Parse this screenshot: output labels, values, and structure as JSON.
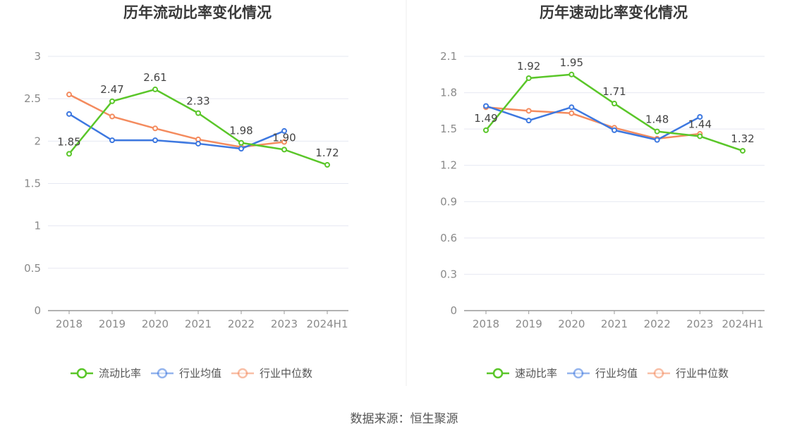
{
  "chart_data": [
    {
      "type": "line",
      "title": "历年流动比率变化情况",
      "categories": [
        "2018",
        "2019",
        "2020",
        "2021",
        "2022",
        "2023",
        "2024H1"
      ],
      "ylim": [
        0,
        3
      ],
      "yticks": [
        "0",
        "0.5",
        "1",
        "1.5",
        "2",
        "2.5",
        "3"
      ],
      "ytick_values": [
        0,
        0.5,
        1,
        1.5,
        2,
        2.5,
        3
      ],
      "grid": true,
      "legend": "bottom",
      "series": [
        {
          "name": "流动比率",
          "color": "#5ac629",
          "values": [
            1.85,
            2.47,
            2.61,
            2.33,
            1.98,
            1.9,
            1.72
          ],
          "labels": [
            "1.85",
            "2.47",
            "2.61",
            "2.33",
            "1.98",
            "1.90",
            "1.72"
          ]
        },
        {
          "name": "行业均值",
          "color": "#3d78e0",
          "values": [
            2.32,
            2.01,
            2.01,
            1.97,
            1.91,
            2.12,
            null
          ]
        },
        {
          "name": "行业中位数",
          "color": "#f48b5e",
          "values": [
            2.55,
            2.29,
            2.15,
            2.02,
            1.93,
            1.99,
            null
          ]
        }
      ]
    },
    {
      "type": "line",
      "title": "历年速动比率变化情况",
      "categories": [
        "2018",
        "2019",
        "2020",
        "2021",
        "2022",
        "2023",
        "2024H1"
      ],
      "ylim": [
        0,
        2.1
      ],
      "yticks": [
        "0",
        "0.3",
        "0.6",
        "0.9",
        "1.2",
        "1.5",
        "1.8",
        "2.1"
      ],
      "ytick_values": [
        0,
        0.3,
        0.6,
        0.9,
        1.2,
        1.5,
        1.8,
        2.1
      ],
      "grid": true,
      "legend": "bottom",
      "series": [
        {
          "name": "速动比率",
          "color": "#5ac629",
          "values": [
            1.49,
            1.92,
            1.95,
            1.71,
            1.48,
            1.44,
            1.32
          ],
          "labels": [
            "1.49",
            "1.92",
            "1.95",
            "1.71",
            "1.48",
            "1.44",
            "1.32"
          ]
        },
        {
          "name": "行业均值",
          "color": "#3d78e0",
          "values": [
            1.69,
            1.57,
            1.68,
            1.49,
            1.41,
            1.6,
            null
          ]
        },
        {
          "name": "行业中位数",
          "color": "#f48b5e",
          "values": [
            1.68,
            1.65,
            1.63,
            1.51,
            1.42,
            1.46,
            null
          ]
        }
      ]
    }
  ],
  "footer": {
    "source": "数据来源：恒生聚源"
  }
}
